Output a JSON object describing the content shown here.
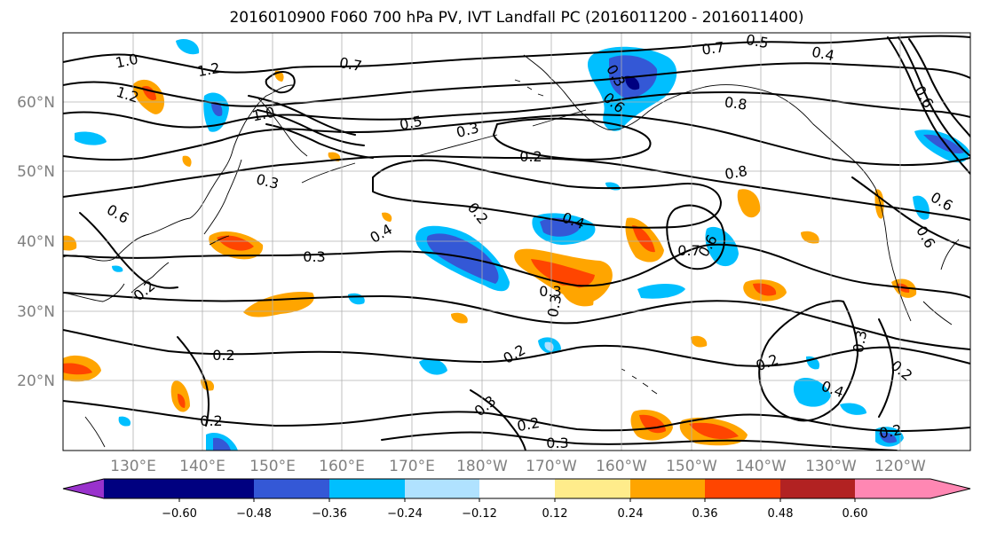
{
  "figure": {
    "title": "2016010900 F060 700 hPa PV, IVT Landfall PC (2016011200 - 2016011400)"
  },
  "axes": {
    "lat_labels": [
      "60°N",
      "50°N",
      "40°N",
      "30°N",
      "20°N"
    ],
    "lon_labels": [
      "130°E",
      "140°E",
      "150°E",
      "160°E",
      "170°E",
      "180°W",
      "170°W",
      "160°W",
      "150°W",
      "140°W",
      "130°W",
      "120°W"
    ]
  },
  "colorbar": {
    "colors": [
      "#9932cc",
      "#000080",
      "#3458d6",
      "#00bfff",
      "#b0e2ff",
      "#ffffff",
      "#ffec8b",
      "#ffa500",
      "#ff4500",
      "#b22222",
      "#ff87b3"
    ],
    "tick_labels": [
      "−0.60",
      "−0.48",
      "−0.36",
      "−0.24",
      "−0.12",
      "0.12",
      "0.24",
      "0.36",
      "0.48",
      "0.60"
    ]
  },
  "contour_labels": [
    "1.0",
    "1.2",
    "1.2",
    "1.0",
    "0.7",
    "0.5",
    "0.3",
    "0.5",
    "0.7",
    "0.4",
    "0.8",
    "0.3",
    "0.2",
    "0.6",
    "0.2",
    "0.4",
    "0.3",
    "0.2",
    "0.3",
    "0.7",
    "0.6",
    "0.8",
    "0.6",
    "0.6",
    "0.4",
    "0.2",
    "0.3",
    "0.3",
    "0.2",
    "0.2",
    "0.3",
    "0.4",
    "0.2",
    "0.2",
    "0.2",
    "0.3",
    "0.2",
    "0.3",
    "0.6",
    "0.6"
  ]
}
